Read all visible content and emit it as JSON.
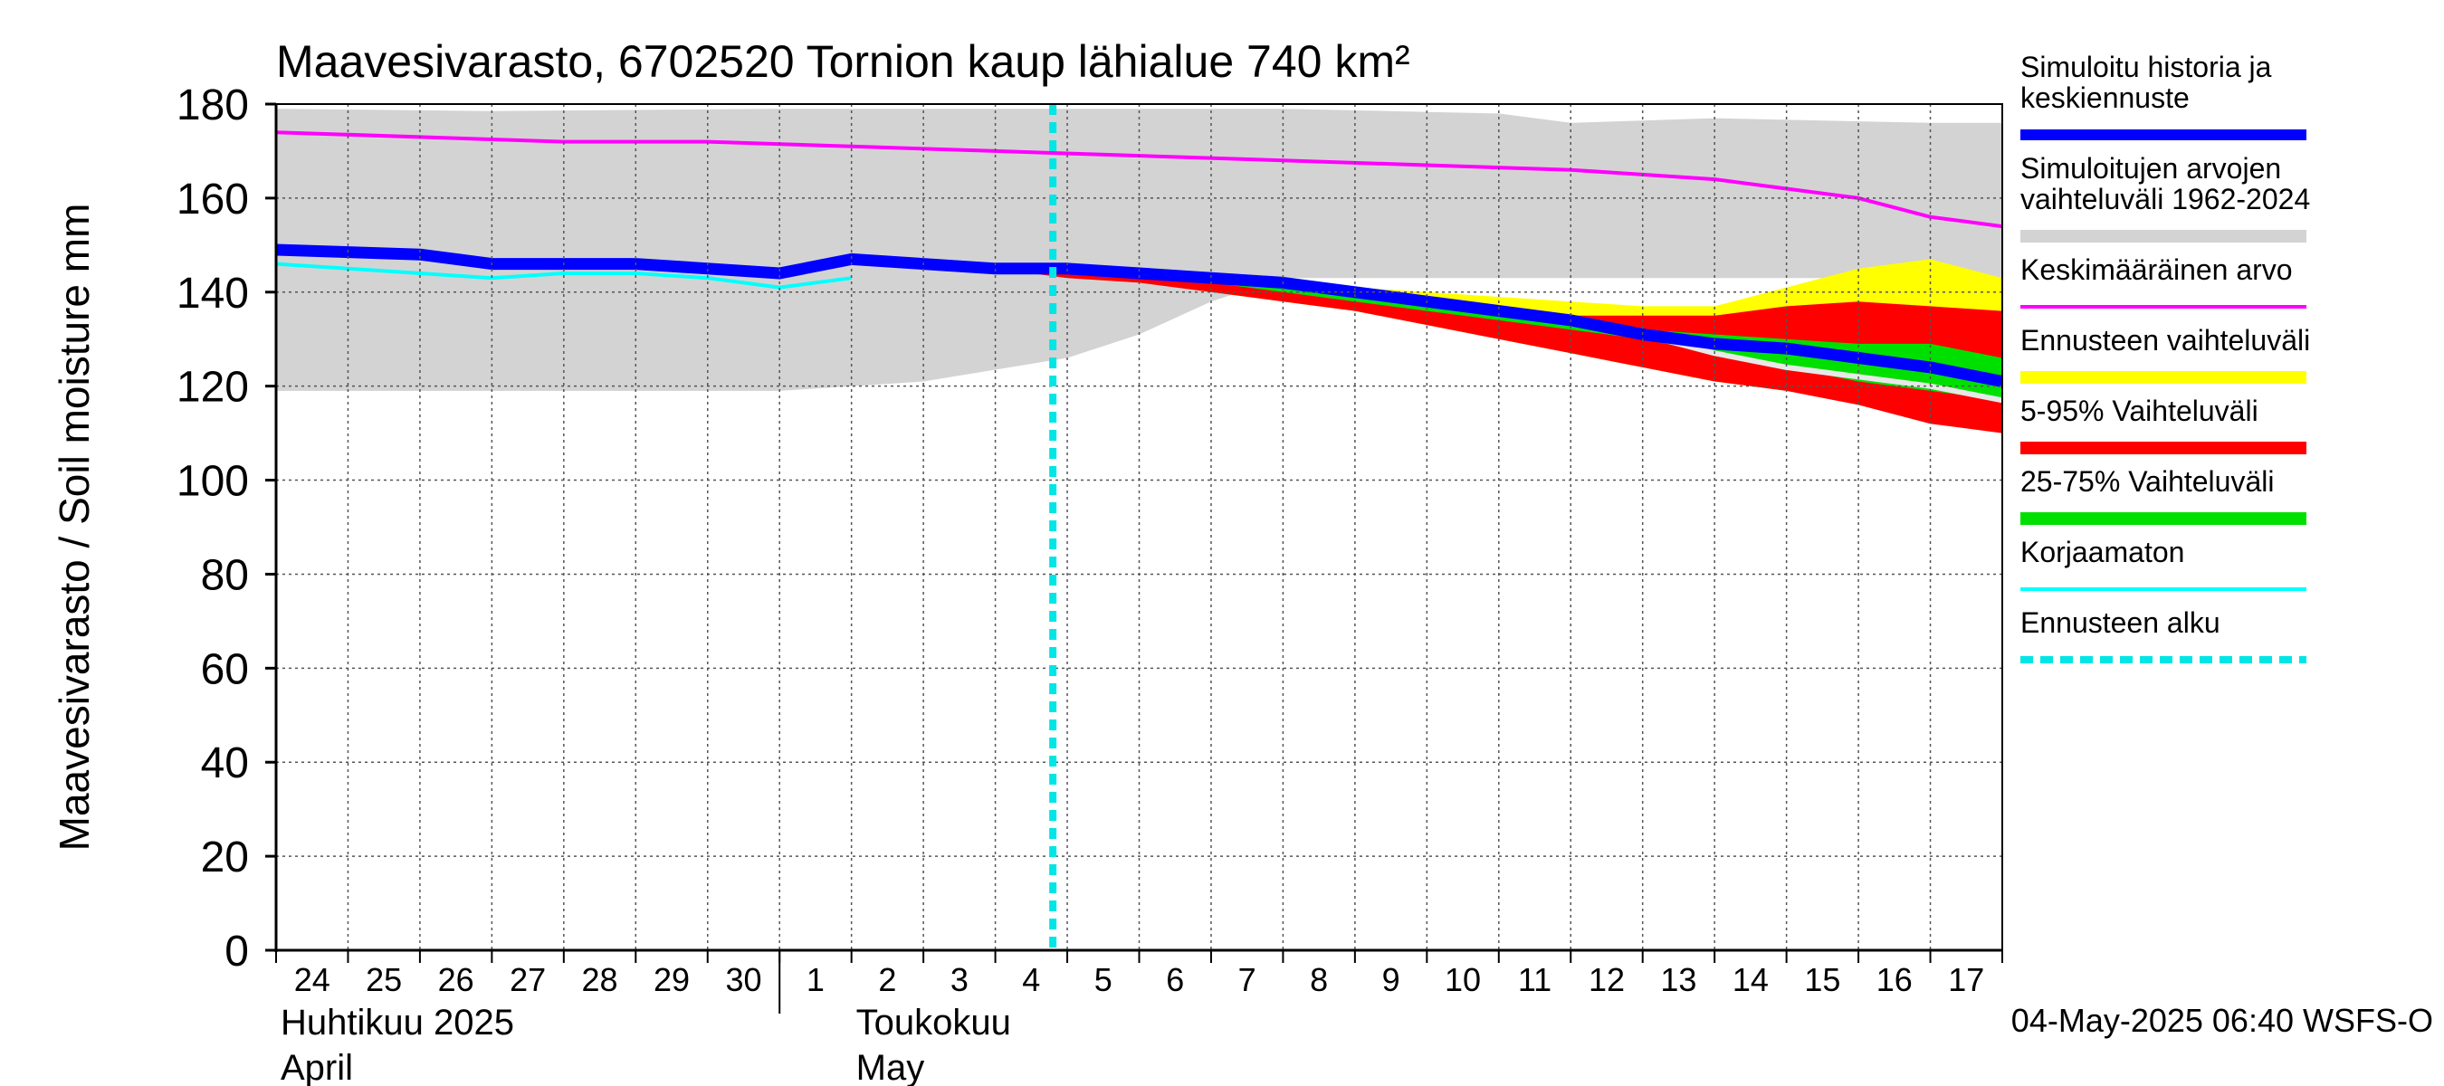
{
  "chart_data": {
    "type": "area",
    "title": "Maavesivarasto, 6702520 Tornion kaup lähialue 740 km²",
    "ylabel": "Maavesivarasto / Soil moisture   mm",
    "ylim": [
      0,
      180
    ],
    "yticks": [
      0,
      20,
      40,
      60,
      80,
      100,
      120,
      140,
      160,
      180
    ],
    "grid": true,
    "legend_position": "right",
    "x_day_labels": [
      "24",
      "25",
      "26",
      "27",
      "28",
      "29",
      "30",
      "1",
      "2",
      "3",
      "4",
      "5",
      "6",
      "7",
      "8",
      "9",
      "10",
      "11",
      "12",
      "13",
      "14",
      "15",
      "16",
      "17"
    ],
    "x_month_labels": [
      {
        "line1": "Huhtikuu  2025",
        "line2": "April"
      },
      {
        "line1": "Toukokuu",
        "line2": "May"
      }
    ],
    "forecast_start_day": 10.8,
    "timestamp": "04-May-2025 06:40 WSFS-O",
    "colors": {
      "simulated": "#0000ff",
      "range": "#d3d3d3",
      "mean": "#ff00ff",
      "forecast_range": "#ffff00",
      "p5_95": "#ff0000",
      "p25_75": "#00e000",
      "uncorrected": "#00ffff",
      "forecast_start": "#00e5e5"
    },
    "legend": [
      {
        "key": "simulated",
        "lines": [
          "Simuloitu historia ja",
          "keskiennuste"
        ],
        "style": "thick"
      },
      {
        "key": "range",
        "lines": [
          "Simuloitujen arvojen",
          "vaihteluväli 1962-2024"
        ],
        "style": "band"
      },
      {
        "key": "mean",
        "lines": [
          "Keskimääräinen arvo"
        ],
        "style": "thin"
      },
      {
        "key": "forecast_range",
        "lines": [
          "Ennusteen vaihteluväli"
        ],
        "style": "band"
      },
      {
        "key": "p5_95",
        "lines": [
          "5-95% Vaihteluväli"
        ],
        "style": "band"
      },
      {
        "key": "p25_75",
        "lines": [
          "25-75% Vaihteluväli"
        ],
        "style": "band"
      },
      {
        "key": "uncorrected",
        "lines": [
          "Korjaamaton"
        ],
        "style": "thin"
      },
      {
        "key": "forecast_start",
        "lines": [
          "Ennusteen alku"
        ],
        "style": "dashed"
      }
    ],
    "series": {
      "range_upper": [
        [
          0,
          179
        ],
        [
          3,
          178.5
        ],
        [
          7,
          179
        ],
        [
          14,
          179
        ],
        [
          17,
          178
        ],
        [
          18,
          176
        ],
        [
          20,
          177
        ],
        [
          23,
          176
        ],
        [
          24,
          176
        ]
      ],
      "range_lower": [
        [
          0,
          119
        ],
        [
          7,
          119
        ],
        [
          9,
          121
        ],
        [
          11,
          126
        ],
        [
          12,
          131
        ],
        [
          13,
          138
        ],
        [
          14,
          143
        ],
        [
          24,
          143
        ]
      ],
      "mean": [
        [
          0,
          174
        ],
        [
          4,
          172
        ],
        [
          6,
          172
        ],
        [
          8,
          171
        ],
        [
          10,
          170
        ],
        [
          14,
          168
        ],
        [
          16,
          167
        ],
        [
          18,
          166
        ],
        [
          19,
          165
        ],
        [
          20,
          164
        ],
        [
          21,
          162
        ],
        [
          22,
          160
        ],
        [
          23,
          156
        ],
        [
          24,
          154
        ]
      ],
      "simulated": [
        [
          0,
          149
        ],
        [
          2,
          148
        ],
        [
          3,
          146
        ],
        [
          5,
          146
        ],
        [
          7,
          144
        ],
        [
          8,
          147
        ],
        [
          9,
          146
        ],
        [
          10,
          145
        ],
        [
          11,
          145
        ],
        [
          12,
          144
        ],
        [
          13,
          143
        ],
        [
          14,
          142
        ],
        [
          15,
          140
        ],
        [
          16,
          138
        ],
        [
          17,
          136
        ],
        [
          18,
          134
        ],
        [
          19,
          131
        ],
        [
          20,
          129
        ],
        [
          21,
          128
        ],
        [
          22,
          126
        ],
        [
          23,
          124
        ],
        [
          24,
          121
        ]
      ],
      "uncorrected": [
        [
          0,
          146
        ],
        [
          1,
          145
        ],
        [
          2,
          144
        ],
        [
          3,
          143
        ],
        [
          4,
          144
        ],
        [
          5,
          144
        ],
        [
          6,
          143
        ],
        [
          7,
          141
        ],
        [
          8,
          143
        ]
      ],
      "forecast_range_upper": [
        [
          10,
          145
        ],
        [
          11,
          146
        ],
        [
          12,
          145
        ],
        [
          13,
          144
        ],
        [
          14,
          142
        ],
        [
          15,
          141
        ],
        [
          16,
          140
        ],
        [
          17,
          139
        ],
        [
          18,
          138
        ],
        [
          19,
          137
        ],
        [
          20,
          137
        ],
        [
          21,
          141
        ],
        [
          22,
          145
        ],
        [
          23,
          147
        ],
        [
          24,
          143
        ]
      ],
      "forecast_range_lower": [
        [
          10,
          145
        ],
        [
          11,
          144
        ],
        [
          12,
          143
        ],
        [
          13,
          140
        ],
        [
          14,
          138
        ],
        [
          15,
          136
        ],
        [
          16,
          133
        ],
        [
          17,
          130
        ],
        [
          18,
          127
        ],
        [
          19,
          124
        ],
        [
          20,
          121
        ],
        [
          21,
          119
        ],
        [
          22,
          117
        ],
        [
          23,
          113
        ],
        [
          24,
          110
        ]
      ],
      "p5_95_upper": [
        [
          10,
          145
        ],
        [
          11,
          146
        ],
        [
          12,
          145
        ],
        [
          13,
          144
        ],
        [
          14,
          142
        ],
        [
          15,
          140
        ],
        [
          16,
          139
        ],
        [
          17,
          137
        ],
        [
          18,
          135
        ],
        [
          19,
          135
        ],
        [
          20,
          135
        ],
        [
          21,
          137
        ],
        [
          22,
          138
        ],
        [
          23,
          137
        ],
        [
          24,
          136
        ]
      ],
      "p5_95_lower": [
        [
          10,
          145
        ],
        [
          11,
          143
        ],
        [
          12,
          142
        ],
        [
          13,
          140
        ],
        [
          14,
          138
        ],
        [
          15,
          136
        ],
        [
          16,
          133
        ],
        [
          17,
          130
        ],
        [
          18,
          127
        ],
        [
          19,
          124
        ],
        [
          20,
          121
        ],
        [
          21,
          119
        ],
        [
          22,
          116
        ],
        [
          23,
          112
        ],
        [
          24,
          110
        ]
      ],
      "p25_75_upper": [
        [
          10,
          145
        ],
        [
          11,
          145
        ],
        [
          12,
          144
        ],
        [
          13,
          143
        ],
        [
          14,
          142
        ],
        [
          15,
          140
        ],
        [
          16,
          138
        ],
        [
          17,
          136
        ],
        [
          18,
          134
        ],
        [
          19,
          132
        ],
        [
          20,
          131
        ],
        [
          21,
          130
        ],
        [
          22,
          129
        ],
        [
          23,
          129
        ],
        [
          24,
          126
        ]
      ],
      "p25_75_lower": [
        [
          10,
          145
        ],
        [
          11,
          144
        ],
        [
          12,
          143
        ],
        [
          13,
          142
        ],
        [
          14,
          140
        ],
        [
          15,
          138
        ],
        [
          16,
          136
        ],
        [
          17,
          134
        ],
        [
          18,
          132
        ],
        [
          19,
          130
        ],
        [
          20,
          127
        ],
        [
          21,
          124
        ],
        [
          22,
          121
        ],
        [
          23,
          119
        ],
        [
          24,
          117
        ]
      ],
      "median_white": [
        [
          19,
          131
        ],
        [
          20,
          127
        ],
        [
          21,
          124
        ],
        [
          22,
          122
        ],
        [
          23,
          120
        ],
        [
          24,
          117
        ]
      ]
    }
  }
}
